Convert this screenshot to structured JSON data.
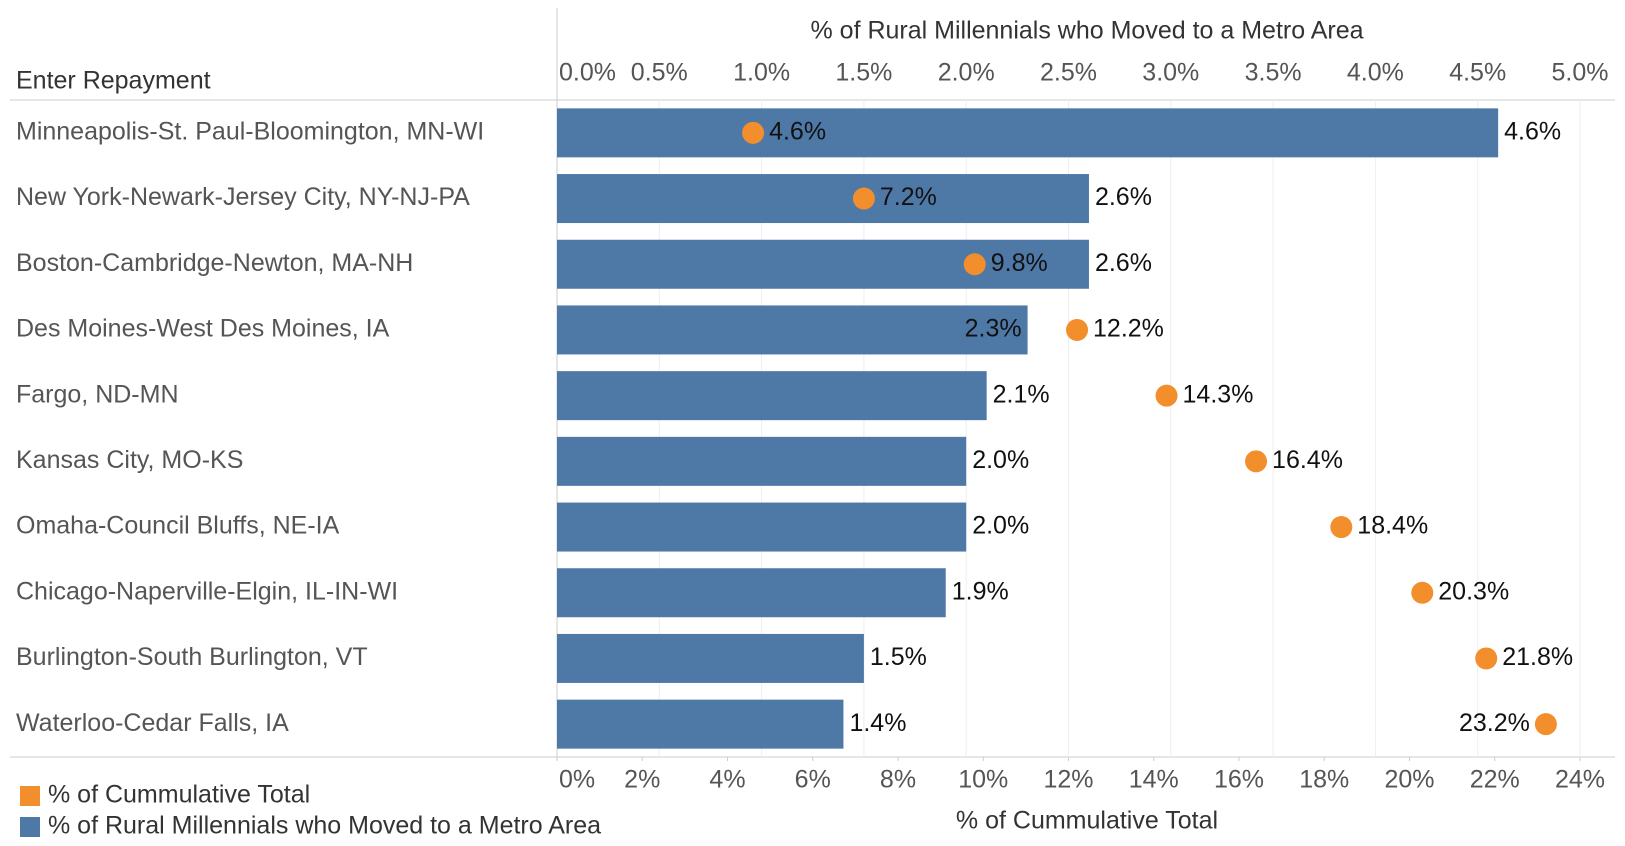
{
  "chart_data": {
    "type": "bar",
    "header": "Enter Repayment",
    "xlabel": "% of Rural Millennials who Moved to a Metro Area",
    "x2label": "% of Cummulative Total",
    "categories": [
      "Minneapolis-St. Paul-Bloomington, MN-WI",
      "New York-Newark-Jersey City, NY-NJ-PA",
      "Boston-Cambridge-Newton, MA-NH",
      "Des Moines-West Des Moines, IA",
      "Fargo, ND-MN",
      "Kansas City, MO-KS",
      "Omaha-Council Bluffs, NE-IA",
      "Chicago-Naperville-Elgin, IL-IN-WI",
      "Burlington-South Burlington, VT",
      "Waterloo-Cedar Falls, IA"
    ],
    "series": [
      {
        "name": "% of Rural Millennials who Moved to a Metro Area",
        "color": "#4e79a7",
        "values": [
          4.6,
          2.6,
          2.6,
          2.3,
          2.1,
          2.0,
          2.0,
          1.9,
          1.5,
          1.4
        ],
        "value_labels": [
          "4.6%",
          "2.6%",
          "2.6%",
          "2.3%",
          "2.1%",
          "2.0%",
          "2.0%",
          "1.9%",
          "1.5%",
          "1.4%"
        ]
      },
      {
        "name": "% of Cummulative Total",
        "color": "#f28e2b",
        "axis": "x2",
        "values": [
          4.6,
          7.2,
          9.8,
          12.2,
          14.3,
          16.4,
          18.4,
          20.3,
          21.8,
          23.2
        ],
        "value_labels": [
          "4.6%",
          "7.2%",
          "9.8%",
          "12.2%",
          "14.3%",
          "16.4%",
          "18.4%",
          "20.3%",
          "21.8%",
          "23.2%"
        ]
      }
    ],
    "xlim": [
      0,
      5
    ],
    "xticks": [
      {
        "value": 0,
        "label": "0.0%"
      },
      {
        "value": 0.5,
        "label": "0.5%"
      },
      {
        "value": 1,
        "label": "1.0%"
      },
      {
        "value": 1.5,
        "label": "1.5%"
      },
      {
        "value": 2,
        "label": "2.0%"
      },
      {
        "value": 2.5,
        "label": "2.5%"
      },
      {
        "value": 3,
        "label": "3.0%"
      },
      {
        "value": 3.5,
        "label": "3.5%"
      },
      {
        "value": 4,
        "label": "4.0%"
      },
      {
        "value": 4.5,
        "label": "4.5%"
      },
      {
        "value": 5,
        "label": "5.0%"
      }
    ],
    "x2lim": [
      0,
      24
    ],
    "x2ticks": [
      {
        "value": 0,
        "label": "0%"
      },
      {
        "value": 2,
        "label": "2%"
      },
      {
        "value": 4,
        "label": "4%"
      },
      {
        "value": 6,
        "label": "6%"
      },
      {
        "value": 8,
        "label": "8%"
      },
      {
        "value": 10,
        "label": "10%"
      },
      {
        "value": 12,
        "label": "12%"
      },
      {
        "value": 14,
        "label": "14%"
      },
      {
        "value": 16,
        "label": "16%"
      },
      {
        "value": 18,
        "label": "18%"
      },
      {
        "value": 20,
        "label": "20%"
      },
      {
        "value": 22,
        "label": "22%"
      },
      {
        "value": 24,
        "label": "24%"
      }
    ],
    "grid": true
  }
}
